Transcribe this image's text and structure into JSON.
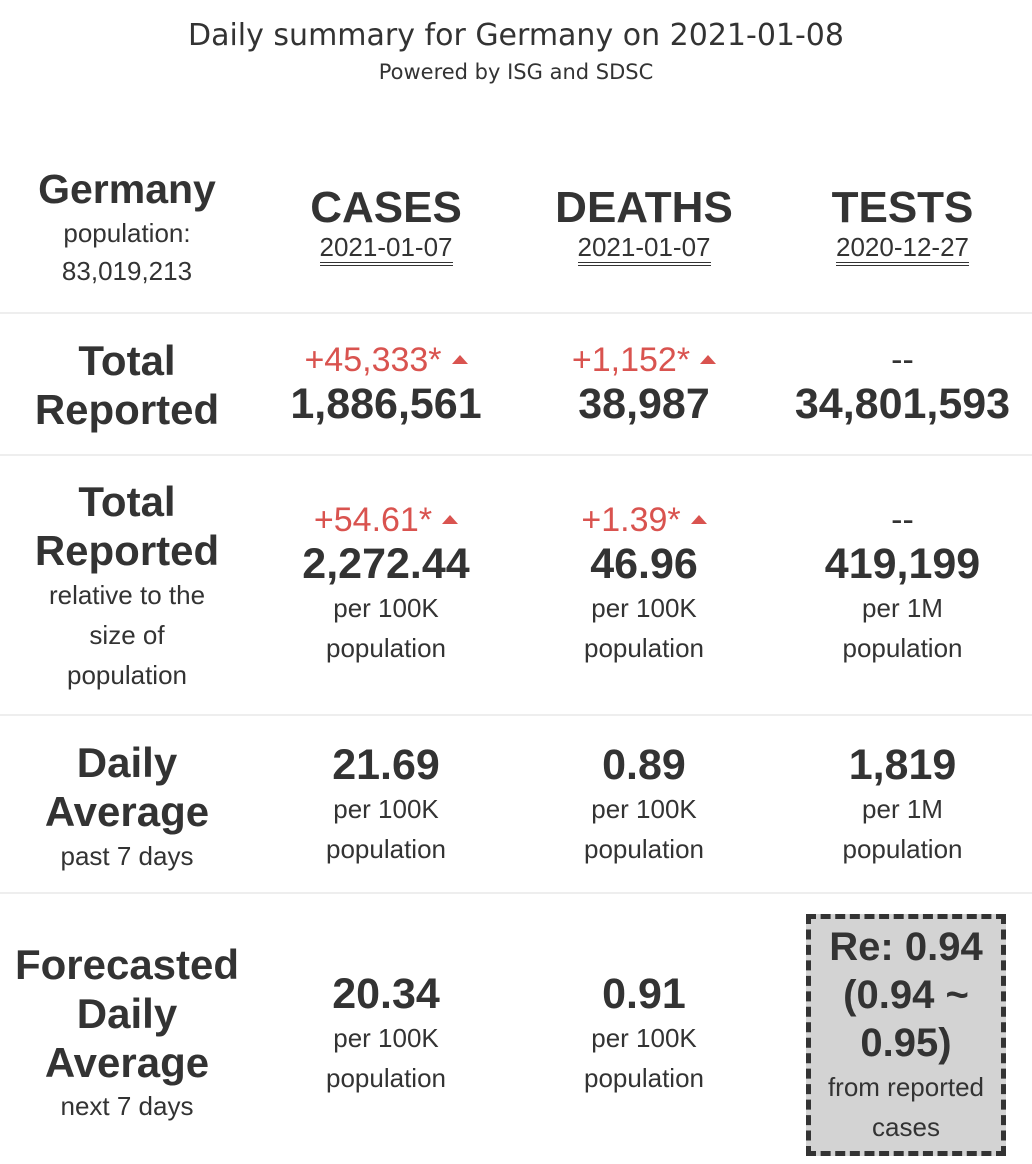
{
  "header": {
    "title": "Daily summary for Germany on 2021-01-08",
    "subtitle": "Powered by ISG and SDSC"
  },
  "country": {
    "name": "Germany",
    "population_label": "population:",
    "population_value": "83,019,213"
  },
  "columns": [
    {
      "label": "CASES",
      "date": "2021-01-07"
    },
    {
      "label": "DEATHS",
      "date": "2021-01-07"
    },
    {
      "label": "TESTS",
      "date": "2020-12-27"
    }
  ],
  "rows": {
    "total_reported": {
      "label_line1": "Total",
      "label_line2": "Reported",
      "cases": {
        "delta": "+45,333*",
        "value": "1,886,561"
      },
      "deaths": {
        "delta": "+1,152*",
        "value": "38,987"
      },
      "tests": {
        "delta": "--",
        "value": "34,801,593"
      }
    },
    "total_relative": {
      "label_line1": "Total",
      "label_line2": "Reported",
      "label_sub1": "relative to the",
      "label_sub2": "size of",
      "label_sub3": "population",
      "cases": {
        "delta": "+54.61*",
        "value": "2,272.44",
        "unit1": "per 100K",
        "unit2": "population"
      },
      "deaths": {
        "delta": "+1.39*",
        "value": "46.96",
        "unit1": "per 100K",
        "unit2": "population"
      },
      "tests": {
        "delta": "--",
        "value": "419,199",
        "unit1": "per 1M",
        "unit2": "population"
      }
    },
    "daily_average": {
      "label_line1": "Daily",
      "label_line2": "Average",
      "label_sub": "past 7 days",
      "cases": {
        "value": "21.69",
        "unit1": "per 100K",
        "unit2": "population"
      },
      "deaths": {
        "value": "0.89",
        "unit1": "per 100K",
        "unit2": "population"
      },
      "tests": {
        "value": "1,819",
        "unit1": "per 1M",
        "unit2": "population"
      }
    },
    "forecast": {
      "label_line1": "Forecasted",
      "label_line2": "Daily",
      "label_line3": "Average",
      "label_sub": "next 7 days",
      "cases": {
        "value": "20.34",
        "unit1": "per 100K",
        "unit2": "population"
      },
      "deaths": {
        "value": "0.91",
        "unit1": "per 100K",
        "unit2": "population"
      },
      "re": {
        "line1": "Re: 0.94",
        "line2": "(0.94 ~",
        "line3": "0.95)",
        "sub1": "from reported",
        "sub2": "cases"
      }
    }
  },
  "colors": {
    "increase": "#d9534f",
    "text": "#333333",
    "re_box_bg": "#d3d3d3"
  }
}
